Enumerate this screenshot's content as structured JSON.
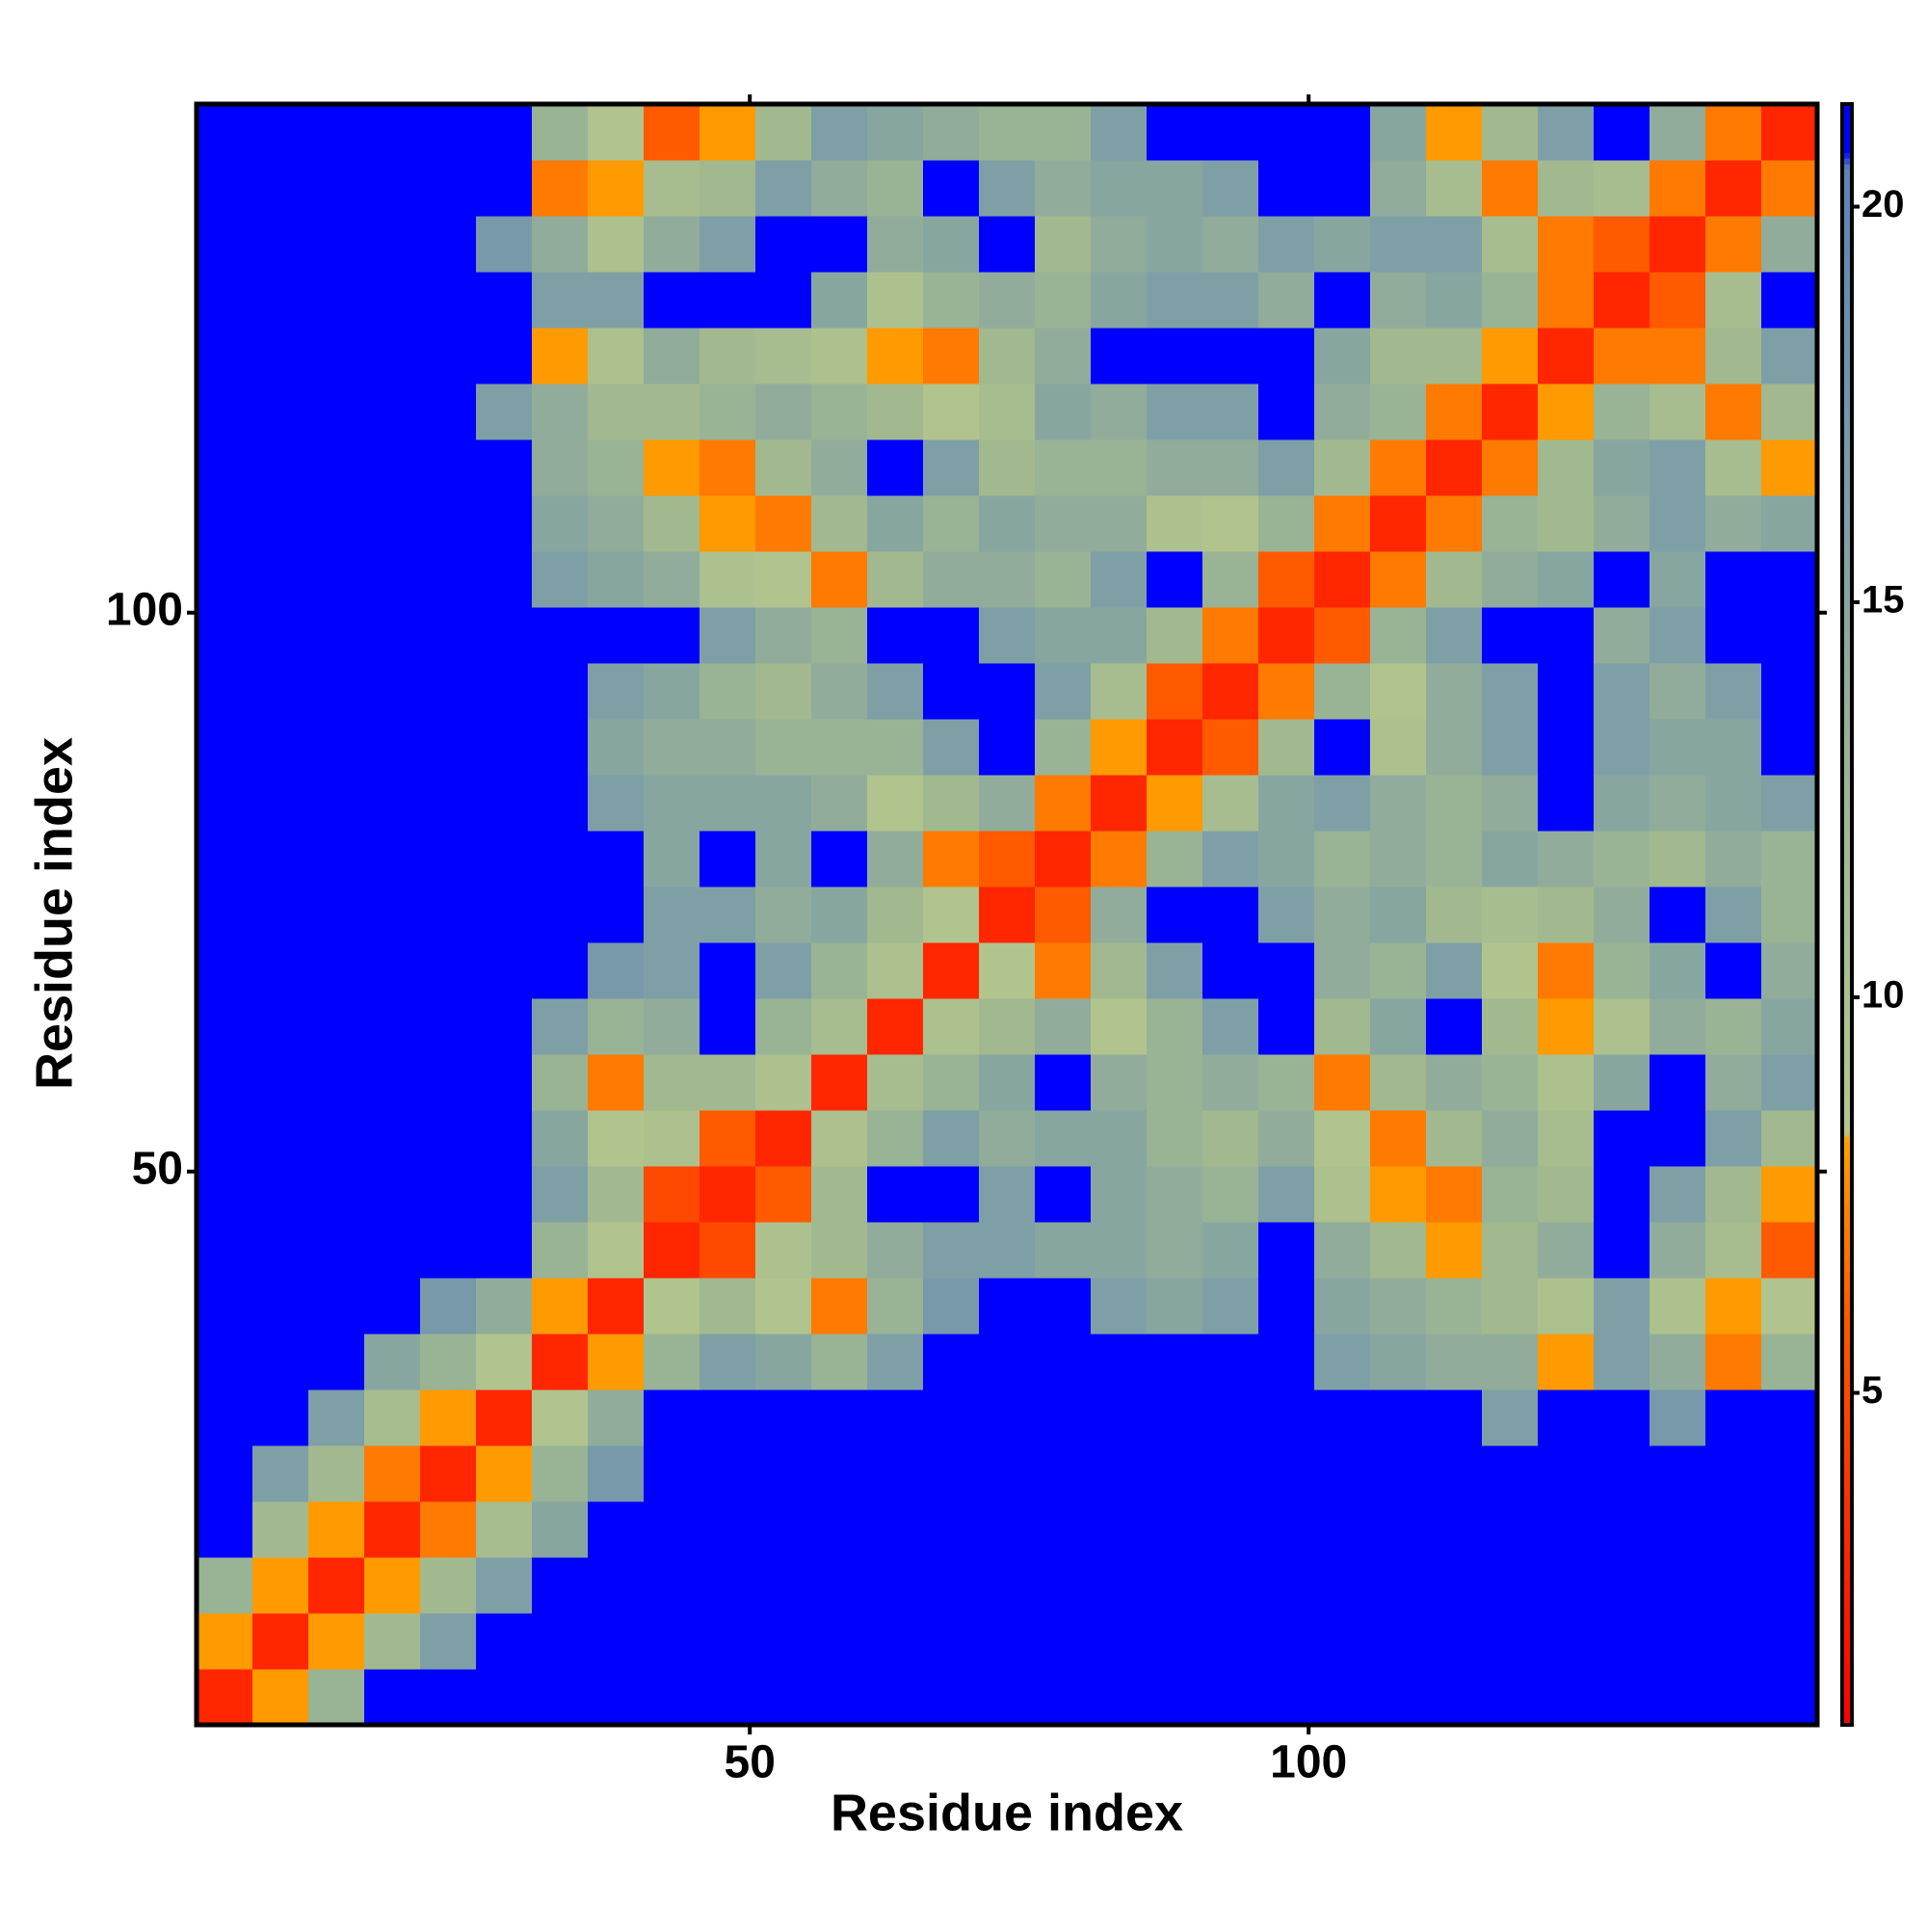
{
  "chart_data": {
    "type": "heatmap",
    "xlabel": "Residue index",
    "ylabel": "Residue index",
    "x": [
      3,
      8,
      13,
      18,
      23,
      28,
      33,
      38,
      43,
      48,
      53,
      58,
      63,
      68,
      73,
      78,
      83,
      88,
      93,
      98,
      103,
      108,
      113,
      118,
      123,
      128,
      133,
      138,
      143
    ],
    "y": [
      3,
      8,
      13,
      18,
      23,
      28,
      33,
      38,
      43,
      48,
      53,
      58,
      63,
      68,
      73,
      78,
      83,
      88,
      93,
      98,
      103,
      108,
      113,
      118,
      123,
      128,
      133,
      138,
      143
    ],
    "values": [
      [
        3,
        8,
        13,
        21,
        21,
        21,
        21,
        21,
        21,
        21,
        21,
        21,
        21,
        21,
        21,
        21,
        21,
        21,
        21,
        21,
        21,
        21,
        21,
        21,
        21,
        21,
        21,
        21,
        21
      ],
      [
        8,
        3,
        8,
        12,
        16,
        21,
        21,
        21,
        21,
        21,
        21,
        21,
        21,
        21,
        21,
        21,
        21,
        21,
        21,
        21,
        21,
        21,
        21,
        21,
        21,
        21,
        21,
        21,
        21
      ],
      [
        13,
        8,
        3,
        8,
        12,
        16,
        21,
        21,
        21,
        21,
        21,
        21,
        21,
        21,
        21,
        21,
        21,
        21,
        21,
        21,
        21,
        21,
        21,
        21,
        21,
        21,
        21,
        21,
        21
      ],
      [
        21,
        12,
        8,
        3,
        7,
        11,
        15,
        21,
        21,
        21,
        21,
        21,
        21,
        21,
        21,
        21,
        21,
        21,
        21,
        21,
        21,
        21,
        21,
        21,
        21,
        21,
        21,
        21,
        21
      ],
      [
        21,
        16,
        12,
        7,
        3,
        8,
        13,
        17,
        21,
        21,
        21,
        21,
        21,
        21,
        21,
        21,
        21,
        21,
        21,
        21,
        21,
        21,
        21,
        21,
        21,
        21,
        21,
        21,
        21
      ],
      [
        21,
        21,
        16,
        11,
        8,
        3,
        9,
        14,
        21,
        21,
        21,
        21,
        21,
        21,
        21,
        21,
        21,
        21,
        21,
        21,
        21,
        21,
        21,
        16,
        21,
        21,
        17,
        21,
        21
      ],
      [
        21,
        21,
        21,
        15,
        13,
        9,
        3,
        8,
        13,
        16,
        15,
        13,
        16,
        21,
        21,
        21,
        21,
        21,
        21,
        21,
        16,
        15,
        14,
        14,
        8,
        16,
        14,
        7,
        13
      ],
      [
        21,
        21,
        21,
        21,
        17,
        14,
        8,
        3,
        9,
        12,
        9,
        7,
        13,
        17,
        21,
        21,
        16,
        15,
        16,
        21,
        15,
        14,
        13,
        12,
        10,
        16,
        10,
        8,
        9
      ],
      [
        21,
        21,
        21,
        21,
        21,
        21,
        13,
        9,
        3,
        5,
        10,
        12,
        14,
        16,
        16,
        15,
        15,
        14,
        15,
        21,
        14,
        12,
        8,
        12,
        14,
        21,
        14,
        11,
        6
      ],
      [
        21,
        21,
        21,
        21,
        21,
        21,
        16,
        12,
        5,
        3,
        6,
        12,
        21,
        21,
        16,
        21,
        15,
        14,
        13,
        16,
        10,
        8,
        7,
        13,
        12,
        21,
        16,
        12,
        8
      ],
      [
        21,
        21,
        21,
        21,
        21,
        21,
        15,
        9,
        10,
        6,
        3,
        10,
        13,
        16,
        14,
        15,
        15,
        13,
        12,
        14,
        9,
        7,
        12,
        14,
        11,
        21,
        21,
        16,
        12
      ],
      [
        21,
        21,
        21,
        21,
        21,
        21,
        13,
        7,
        12,
        12,
        10,
        3,
        11,
        13,
        15,
        21,
        14,
        13,
        14,
        13,
        7,
        12,
        14,
        13,
        10,
        15,
        21,
        14,
        16
      ],
      [
        21,
        21,
        21,
        21,
        21,
        21,
        16,
        13,
        14,
        21,
        13,
        11,
        3,
        10,
        12,
        14,
        9,
        13,
        16,
        21,
        12,
        15,
        21,
        12,
        8,
        10,
        14,
        13,
        15
      ],
      [
        21,
        21,
        21,
        21,
        21,
        21,
        21,
        17,
        16,
        21,
        16,
        13,
        10,
        3,
        9,
        7,
        12,
        16,
        21,
        21,
        14,
        13,
        16,
        9,
        7,
        13,
        15,
        21,
        14
      ],
      [
        21,
        21,
        21,
        21,
        21,
        21,
        21,
        21,
        16,
        16,
        14,
        15,
        12,
        9,
        3,
        6,
        14,
        21,
        21,
        16,
        14,
        15,
        12,
        11,
        12,
        14,
        21,
        16,
        13
      ],
      [
        21,
        21,
        21,
        21,
        21,
        21,
        21,
        21,
        15,
        21,
        15,
        21,
        14,
        7,
        6,
        3,
        7,
        13,
        16,
        15,
        13,
        14,
        13,
        15,
        14,
        13,
        12,
        14,
        13
      ],
      [
        21,
        21,
        21,
        21,
        21,
        21,
        21,
        16,
        15,
        15,
        15,
        14,
        9,
        12,
        14,
        7,
        3,
        8,
        11,
        15,
        16,
        14,
        13,
        14,
        21,
        15,
        14,
        15,
        16
      ],
      [
        21,
        21,
        21,
        21,
        21,
        21,
        21,
        15,
        14,
        14,
        13,
        13,
        13,
        16,
        21,
        13,
        8,
        3,
        6,
        12,
        21,
        10,
        14,
        16,
        21,
        16,
        15,
        15,
        21
      ],
      [
        21,
        21,
        21,
        21,
        21,
        21,
        21,
        16,
        15,
        13,
        12,
        14,
        16,
        21,
        21,
        16,
        11,
        6,
        3,
        7,
        13,
        9,
        14,
        16,
        21,
        16,
        14,
        16,
        21
      ],
      [
        21,
        21,
        21,
        21,
        21,
        21,
        21,
        21,
        21,
        16,
        14,
        13,
        21,
        21,
        16,
        15,
        15,
        12,
        7,
        3,
        6,
        13,
        16,
        21,
        21,
        14,
        16,
        21,
        21
      ],
      [
        21,
        21,
        21,
        21,
        21,
        21,
        16,
        15,
        14,
        10,
        9,
        7,
        12,
        14,
        14,
        13,
        16,
        21,
        13,
        6,
        3,
        7,
        12,
        14,
        15,
        21,
        15,
        21,
        21
      ],
      [
        21,
        21,
        21,
        21,
        21,
        21,
        15,
        14,
        12,
        8,
        7,
        12,
        15,
        13,
        15,
        14,
        14,
        10,
        9,
        13,
        7,
        3,
        7,
        13,
        12,
        14,
        16,
        14,
        15
      ],
      [
        21,
        21,
        21,
        21,
        21,
        21,
        14,
        13,
        8,
        7,
        12,
        14,
        21,
        16,
        12,
        13,
        13,
        14,
        14,
        16,
        12,
        7,
        3,
        7,
        12,
        15,
        16,
        11,
        8
      ],
      [
        21,
        21,
        21,
        21,
        21,
        16,
        14,
        12,
        12,
        13,
        14,
        13,
        12,
        9,
        11,
        15,
        14,
        16,
        16,
        21,
        14,
        13,
        7,
        3,
        8,
        13,
        11,
        7,
        12
      ],
      [
        21,
        21,
        21,
        21,
        21,
        21,
        8,
        10,
        14,
        12,
        11,
        10,
        8,
        7,
        12,
        14,
        21,
        21,
        21,
        21,
        15,
        12,
        12,
        8,
        3,
        7,
        7,
        12,
        16
      ],
      [
        21,
        21,
        21,
        21,
        21,
        21,
        16,
        16,
        21,
        21,
        21,
        15,
        10,
        13,
        14,
        13,
        15,
        16,
        16,
        14,
        21,
        14,
        15,
        13,
        7,
        3,
        6,
        11,
        21
      ],
      [
        21,
        21,
        21,
        21,
        21,
        17,
        14,
        10,
        14,
        16,
        21,
        21,
        14,
        15,
        21,
        12,
        14,
        15,
        14,
        16,
        15,
        16,
        16,
        11,
        7,
        6,
        3,
        7,
        14
      ],
      [
        21,
        21,
        21,
        21,
        21,
        21,
        7,
        8,
        11,
        12,
        16,
        14,
        13,
        21,
        16,
        14,
        15,
        15,
        16,
        21,
        21,
        14,
        11,
        7,
        12,
        11,
        7,
        3,
        7
      ],
      [
        21,
        21,
        21,
        21,
        21,
        21,
        13,
        9,
        6,
        8,
        12,
        16,
        15,
        14,
        13,
        13,
        16,
        21,
        21,
        21,
        21,
        15,
        8,
        12,
        16,
        21,
        14,
        7,
        3
      ]
    ],
    "xlim": [
      0.5,
      145.5
    ],
    "ylim": [
      0.5,
      145.5
    ],
    "xticks": [
      50,
      100
    ],
    "yticks": [
      50,
      100
    ],
    "clim": [
      0.8,
      21.3
    ],
    "cticks": [
      5,
      10,
      15,
      20
    ],
    "colorscale": [
      [
        0.8,
        "#ff0000"
      ],
      [
        6,
        "#ff5a00"
      ],
      [
        8.2,
        "#ffa000"
      ],
      [
        8.3,
        "#b4c78e"
      ],
      [
        12,
        "#a2b98f"
      ],
      [
        16,
        "#7f9fa6"
      ],
      [
        20.5,
        "#5b84b4"
      ],
      [
        20.7,
        "#0000ff"
      ]
    ]
  }
}
